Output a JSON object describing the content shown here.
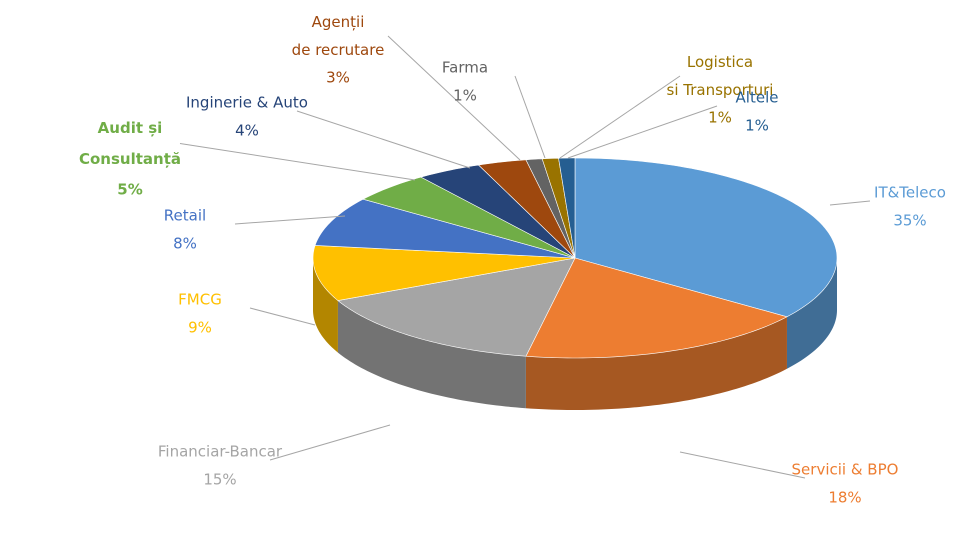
{
  "chart_data": {
    "type": "pie3d",
    "categories": [
      "IT&Teleco",
      "Servicii & BPO",
      "Financiar-Bancar",
      "FMCG",
      "Retail",
      "Audit și Consultanță",
      "Inginerie & Auto",
      "Agenții de recrutare",
      "Farma",
      "Logistica si Transporturi",
      "Altele"
    ],
    "values": [
      35,
      18,
      15,
      9,
      8,
      5,
      4,
      3,
      1,
      1,
      1
    ],
    "value_labels": [
      "35%",
      "18%",
      "15%",
      "9%",
      "8%",
      "5%",
      "4%",
      "3%",
      "1%",
      "1%",
      "1%"
    ],
    "colors": [
      "#5b9bd5",
      "#ed7d31",
      "#a5a5a5",
      "#ffc000",
      "#4472c4",
      "#70ad47",
      "#264478",
      "#9e480e",
      "#636363",
      "#997300",
      "#255e91"
    ]
  }
}
